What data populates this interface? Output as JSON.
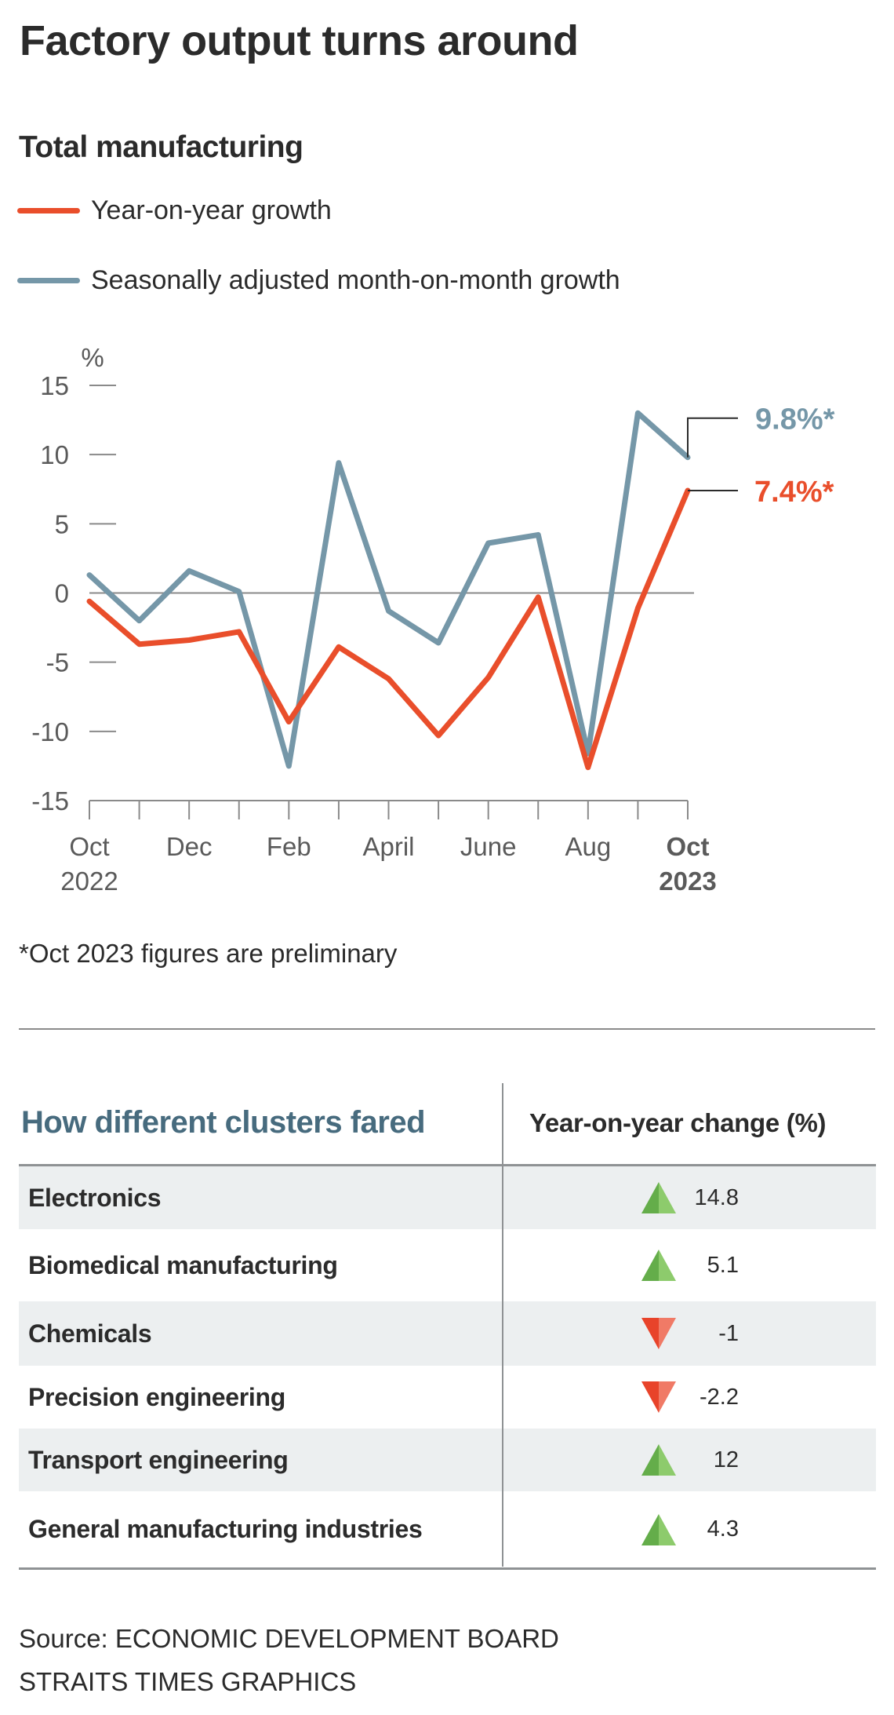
{
  "title": "Factory output turns around",
  "subtitle": "Total manufacturing",
  "legend": [
    {
      "label": "Year-on-year growth",
      "color": "#e94e2b"
    },
    {
      "label": "Seasonally adjusted month-on-month growth",
      "color": "#7597a8"
    }
  ],
  "footnote": "*Oct 2023 figures are preliminary",
  "chart_data": {
    "type": "line",
    "title": "Total manufacturing",
    "xlabel": "",
    "ylabel": "%",
    "ylim": [
      -15,
      15
    ],
    "yticks": [
      15,
      10,
      5,
      0,
      -5,
      -10,
      -15
    ],
    "x": [
      "Oct 2022",
      "Nov 2022",
      "Dec 2022",
      "Jan 2023",
      "Feb 2023",
      "Mar 2023",
      "Apr 2023",
      "May 2023",
      "Jun 2023",
      "Jul 2023",
      "Aug 2023",
      "Sep 2023",
      "Oct 2023"
    ],
    "x_tick_labels": [
      {
        "index": 0,
        "line1": "Oct",
        "line2": "2022",
        "bold": false
      },
      {
        "index": 2,
        "line1": "Dec",
        "line2": "",
        "bold": false
      },
      {
        "index": 4,
        "line1": "Feb",
        "line2": "",
        "bold": false
      },
      {
        "index": 6,
        "line1": "April",
        "line2": "",
        "bold": false
      },
      {
        "index": 8,
        "line1": "June",
        "line2": "",
        "bold": false
      },
      {
        "index": 10,
        "line1": "Aug",
        "line2": "",
        "bold": false
      },
      {
        "index": 12,
        "line1": "Oct",
        "line2": "2023",
        "bold": true
      }
    ],
    "series": [
      {
        "name": "Year-on-year growth",
        "color": "#e94e2b",
        "values": [
          -0.6,
          -3.7,
          -3.4,
          -2.8,
          -9.3,
          -3.9,
          -6.2,
          -10.3,
          -6.1,
          -0.3,
          -12.6,
          -1.1,
          7.4
        ],
        "end_label": "7.4%*"
      },
      {
        "name": "Seasonally adjusted month-on-month growth",
        "color": "#7597a8",
        "values": [
          1.3,
          -2.0,
          1.6,
          0.1,
          -12.5,
          9.4,
          -1.3,
          -3.6,
          3.6,
          4.2,
          -11.6,
          13.0,
          9.8
        ],
        "end_label": "9.8%*"
      }
    ],
    "grid": false,
    "zero_line": true,
    "legend_position": "top-left"
  },
  "table": {
    "header_left": "How different clusters fared",
    "header_right": "Year-on-year change (%)",
    "rows": [
      {
        "name": "Electronics",
        "value": "14.8",
        "direction": "up",
        "shaded": true
      },
      {
        "name": "Biomedical manufacturing",
        "value": "5.1",
        "direction": "up",
        "shaded": false
      },
      {
        "name": "Chemicals",
        "value": "-1",
        "direction": "down",
        "shaded": true
      },
      {
        "name": "Precision engineering",
        "value": "-2.2",
        "direction": "down",
        "shaded": false
      },
      {
        "name": "Transport engineering",
        "value": "12",
        "direction": "up",
        "shaded": true
      },
      {
        "name": "General manufacturing industries",
        "value": "4.3",
        "direction": "up",
        "shaded": false
      }
    ],
    "colors": {
      "up_dark": "#64ad4a",
      "up_light": "#8dcb6c",
      "down_dark": "#e8432a",
      "down_light": "#f07a66",
      "header_left": "#476b7e"
    }
  },
  "source": "Source: ECONOMIC DEVELOPMENT BOARD",
  "credit": "STRAITS TIMES GRAPHICS"
}
